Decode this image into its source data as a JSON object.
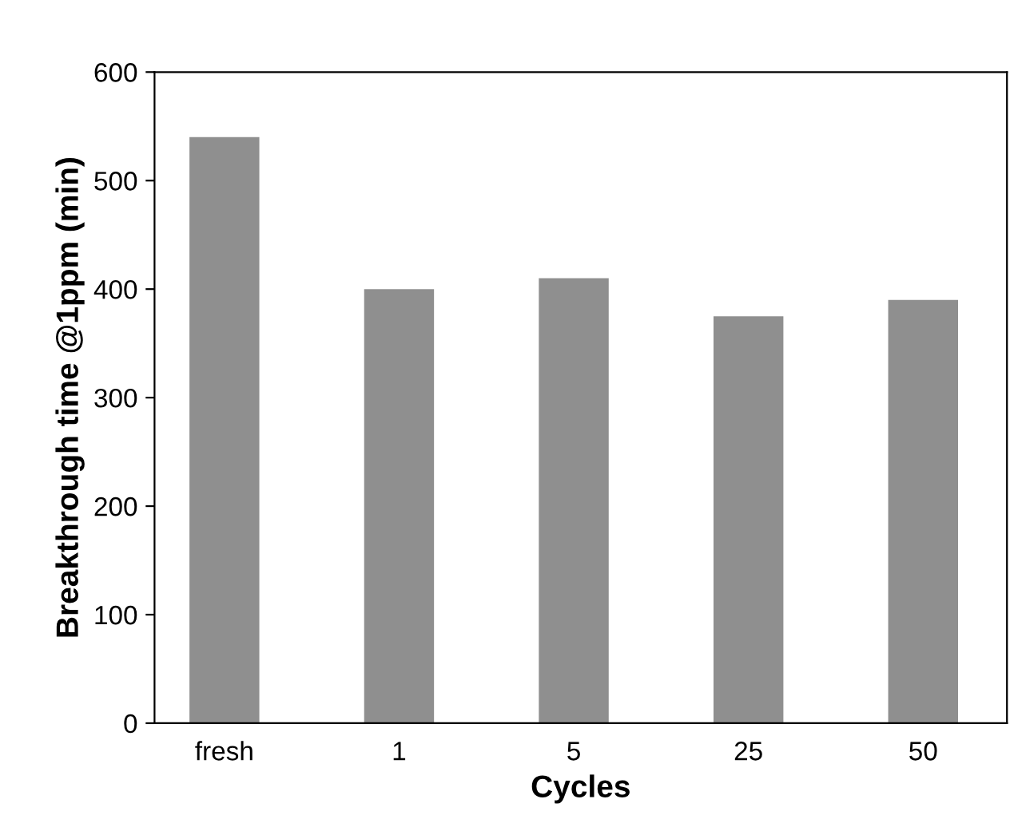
{
  "chart_data": {
    "type": "bar",
    "xlabel": "Cycles",
    "ylabel": "Breakthrough time @1ppm (min)",
    "categories": [
      "fresh",
      "1",
      "5",
      "25",
      "50"
    ],
    "values": [
      540,
      400,
      410,
      375,
      390
    ],
    "color": "#8f8f8f",
    "ylim": [
      0,
      600
    ],
    "yticks": [
      0,
      100,
      200,
      300,
      400,
      500,
      600
    ],
    "grid": false
  }
}
